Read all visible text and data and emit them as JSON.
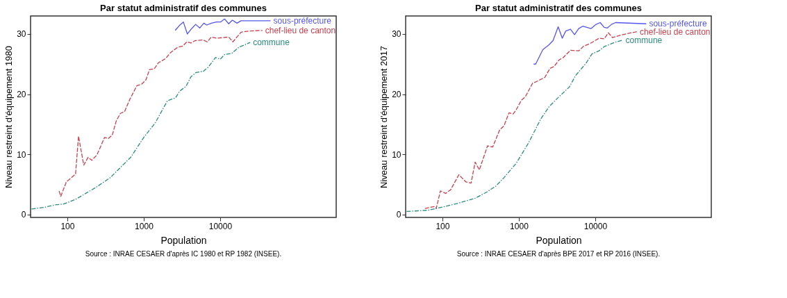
{
  "chart_data": [
    {
      "type": "line",
      "title": "Par statut administratif des communes",
      "xlabel": "Population",
      "ylabel": "Niveau restreint d'équipement 1980",
      "log": "x",
      "grid": false,
      "xlim": [
        33,
        330000
      ],
      "xticks": [
        100,
        1000,
        10000
      ],
      "ylim": [
        -0.5,
        33
      ],
      "yticks": [
        0,
        10,
        20,
        30
      ],
      "annotations": [
        "Source : INRAE CESAER d'après IC 1980 et RP 1982 (INSEE)."
      ],
      "series": [
        {
          "name": "sous-préfecture",
          "color": "#5555ee",
          "line_style": "solid",
          "x": [
            2580,
            2920,
            3300,
            3720,
            4230,
            4780,
            5400,
            6110,
            6660,
            7680,
            8950,
            10100,
            11460,
            12940,
            14450,
            16600,
            18750,
            45700
          ],
          "values": [
            30.6,
            31.4,
            32.0,
            30.0,
            30.9,
            31.6,
            31.0,
            31.8,
            31.5,
            31.8,
            32.0,
            32.0,
            32.5,
            31.7,
            32.3,
            31.8,
            32.2,
            32.2
          ]
        },
        {
          "name": "chef-lieu de canton",
          "color": "#c8404e",
          "line_style": "dashed",
          "x": [
            78,
            82,
            97,
            128,
            140,
            164,
            187,
            209,
            244,
            307,
            343,
            387,
            438,
            495,
            561,
            655,
            812,
            947,
            1070,
            1190,
            1370,
            1550,
            1920,
            2240,
            2780,
            3240,
            3660,
            4150,
            4690,
            6000,
            6770,
            7670,
            8950,
            12940,
            14660,
            18750,
            23990,
            35700
          ],
          "values": [
            3.9,
            3.0,
            5.4,
            6.7,
            13.0,
            8.2,
            9.5,
            9.0,
            9.9,
            12.8,
            12.6,
            13.2,
            15.6,
            16.8,
            17.1,
            19.1,
            21.4,
            21.7,
            22.4,
            24.1,
            24.2,
            25.2,
            25.9,
            26.9,
            27.8,
            28.0,
            28.7,
            28.5,
            28.9,
            29.0,
            28.7,
            29.5,
            29.3,
            29.5,
            28.7,
            30.3,
            30.5,
            30.6
          ]
        },
        {
          "name": "commune",
          "color": "#2a8c7a",
          "line_style": "dashdot",
          "x": [
            34,
            51,
            69,
            88,
            128,
            174,
            237,
            363,
            495,
            675,
            1000,
            1410,
            2040,
            2610,
            2950,
            3570,
            4150,
            4840,
            6000,
            7000,
            8700,
            10000,
            11470,
            14200,
            17600,
            24700
          ],
          "values": [
            0.9,
            1.2,
            1.6,
            1.7,
            2.5,
            3.5,
            4.5,
            6.1,
            7.8,
            9.5,
            12.8,
            15.2,
            18.9,
            19.4,
            20.5,
            21.3,
            22.9,
            23.6,
            23.8,
            24.5,
            26.1,
            25.8,
            26.6,
            26.8,
            27.8,
            28.6
          ]
        }
      ]
    },
    {
      "type": "line",
      "title": "Par statut administratif des communes",
      "xlabel": "Population",
      "ylabel": "Niveau restreint d'équipement 2017",
      "log": "x",
      "grid": false,
      "xlim": [
        33,
        330000
      ],
      "xticks": [
        100,
        1000,
        10000
      ],
      "ylim": [
        -0.5,
        33
      ],
      "yticks": [
        0,
        10,
        20,
        30
      ],
      "annotations": [
        "Source : INRAE CESAER d'après BPE 2017 et RP 2016 (INSEE)."
      ],
      "series": [
        {
          "name": "sous-préfecture",
          "color": "#5555ee",
          "line_style": "solid",
          "x": [
            1560,
            1660,
            2060,
            2480,
            2800,
            3270,
            3700,
            4110,
            4740,
            5360,
            6070,
            6850,
            8780,
            10250,
            11600,
            13100,
            14400,
            16300,
            18400,
            46500
          ],
          "values": [
            25.0,
            25.0,
            27.4,
            28.2,
            28.9,
            31.2,
            29.3,
            30.5,
            30.8,
            29.9,
            30.9,
            31.3,
            30.9,
            31.6,
            31.9,
            31.1,
            31.0,
            31.6,
            31.9,
            31.7
          ]
        },
        {
          "name": "chef-lieu de canton",
          "color": "#c8404e",
          "line_style": "dashed",
          "x": [
            59,
            78,
            83,
            94,
            110,
            128,
            164,
            203,
            237,
            268,
            304,
            389,
            454,
            563,
            637,
            743,
            841,
            923,
            1080,
            1220,
            1510,
            1770,
            2190,
            2560,
            2890,
            3370,
            3820,
            4740,
            6070,
            7080,
            8520,
            11220,
            13100,
            14860,
            16800,
            22900,
            35200
          ],
          "values": [
            1.0,
            1.3,
            1.0,
            3.9,
            3.5,
            4.1,
            6.6,
            5.4,
            5.2,
            8.7,
            7.4,
            11.4,
            11.2,
            14.1,
            14.7,
            16.9,
            16.7,
            17.4,
            19.0,
            19.6,
            21.8,
            22.2,
            22.8,
            24.3,
            24.6,
            25.7,
            26.1,
            27.3,
            27.2,
            28.0,
            28.4,
            29.3,
            29.2,
            30.2,
            29.4,
            29.9,
            30.4
          ]
        },
        {
          "name": "commune",
          "color": "#2a8c7a",
          "line_style": "dashdot",
          "x": [
            34,
            48,
            65,
            83,
            106,
            154,
            210,
            268,
            366,
            500,
            637,
            923,
            1340,
            1940,
            2480,
            3370,
            4590,
            5530,
            7530,
            9060,
            11220,
            13100,
            17900,
            22900
          ],
          "values": [
            0.5,
            0.6,
            0.7,
            1.0,
            1.3,
            1.8,
            2.3,
            2.7,
            3.6,
            4.7,
            6.1,
            8.5,
            11.9,
            15.9,
            17.9,
            19.6,
            21.2,
            23.1,
            25.1,
            26.7,
            27.2,
            27.9,
            28.6,
            29.0
          ]
        }
      ]
    }
  ]
}
